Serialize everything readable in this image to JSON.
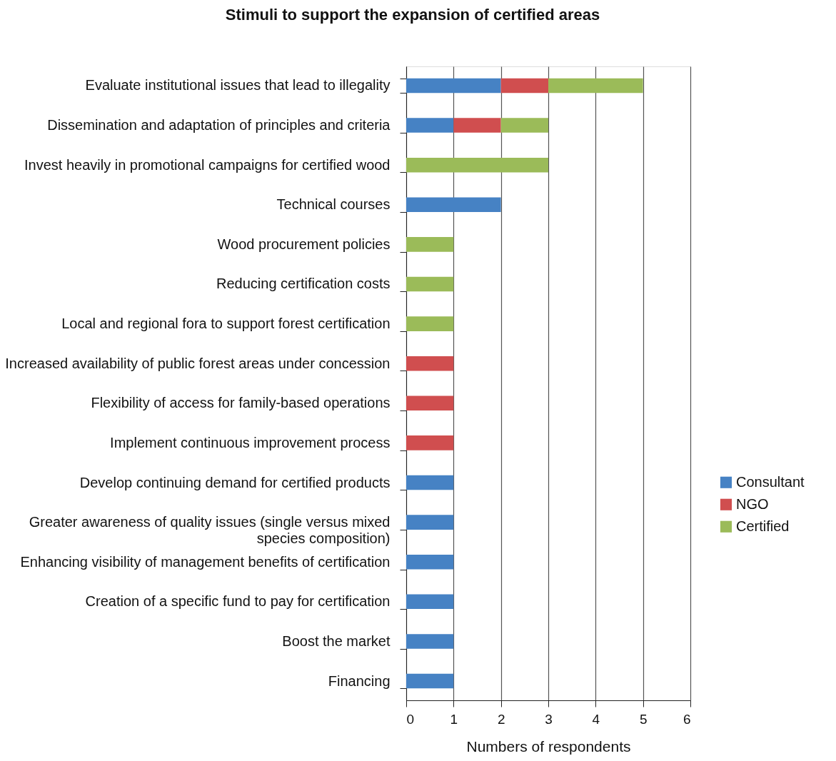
{
  "chart_data": {
    "type": "bar",
    "orientation": "horizontal",
    "stacked": true,
    "title": "Stimuli to support the expansion of certified areas",
    "xlabel": "Numbers of respondents",
    "categories": [
      "Evaluate institutional issues that lead to illegality",
      "Dissemination and adaptation of principles and criteria",
      "Invest heavily in promotional campaigns for certified wood",
      "Technical courses",
      "Wood procurement policies",
      "Reducing certification costs",
      "Local and regional fora to support forest certification",
      "Increased availability of public forest areas under concession",
      "Flexibility of access for family-based operations",
      "Implement continuous improvement process",
      "Develop continuing demand for certified products",
      "Greater awareness of quality issues (single versus mixed\nspecies composition)",
      "Enhancing visibility of management benefits of certification",
      "Creation of a specific fund to pay for certification",
      "Boost the market",
      "Financing"
    ],
    "series": [
      {
        "name": "Consultant",
        "color": "#4682c4",
        "values": [
          2,
          1,
          0,
          2,
          0,
          0,
          0,
          0,
          0,
          0,
          1,
          1,
          1,
          1,
          1,
          1
        ]
      },
      {
        "name": "NGO",
        "color": "#d04e4f",
        "values": [
          1,
          1,
          0,
          0,
          0,
          0,
          0,
          1,
          1,
          1,
          0,
          0,
          0,
          0,
          0,
          0
        ]
      },
      {
        "name": "Certified",
        "color": "#9bbb59",
        "values": [
          2,
          1,
          3,
          0,
          1,
          1,
          1,
          0,
          0,
          0,
          0,
          0,
          0,
          0,
          0,
          0
        ]
      }
    ],
    "xlim": [
      0,
      6
    ],
    "xticks": [
      0,
      1,
      2,
      3,
      4,
      5,
      6
    ],
    "grid": "x",
    "legend": "right"
  }
}
